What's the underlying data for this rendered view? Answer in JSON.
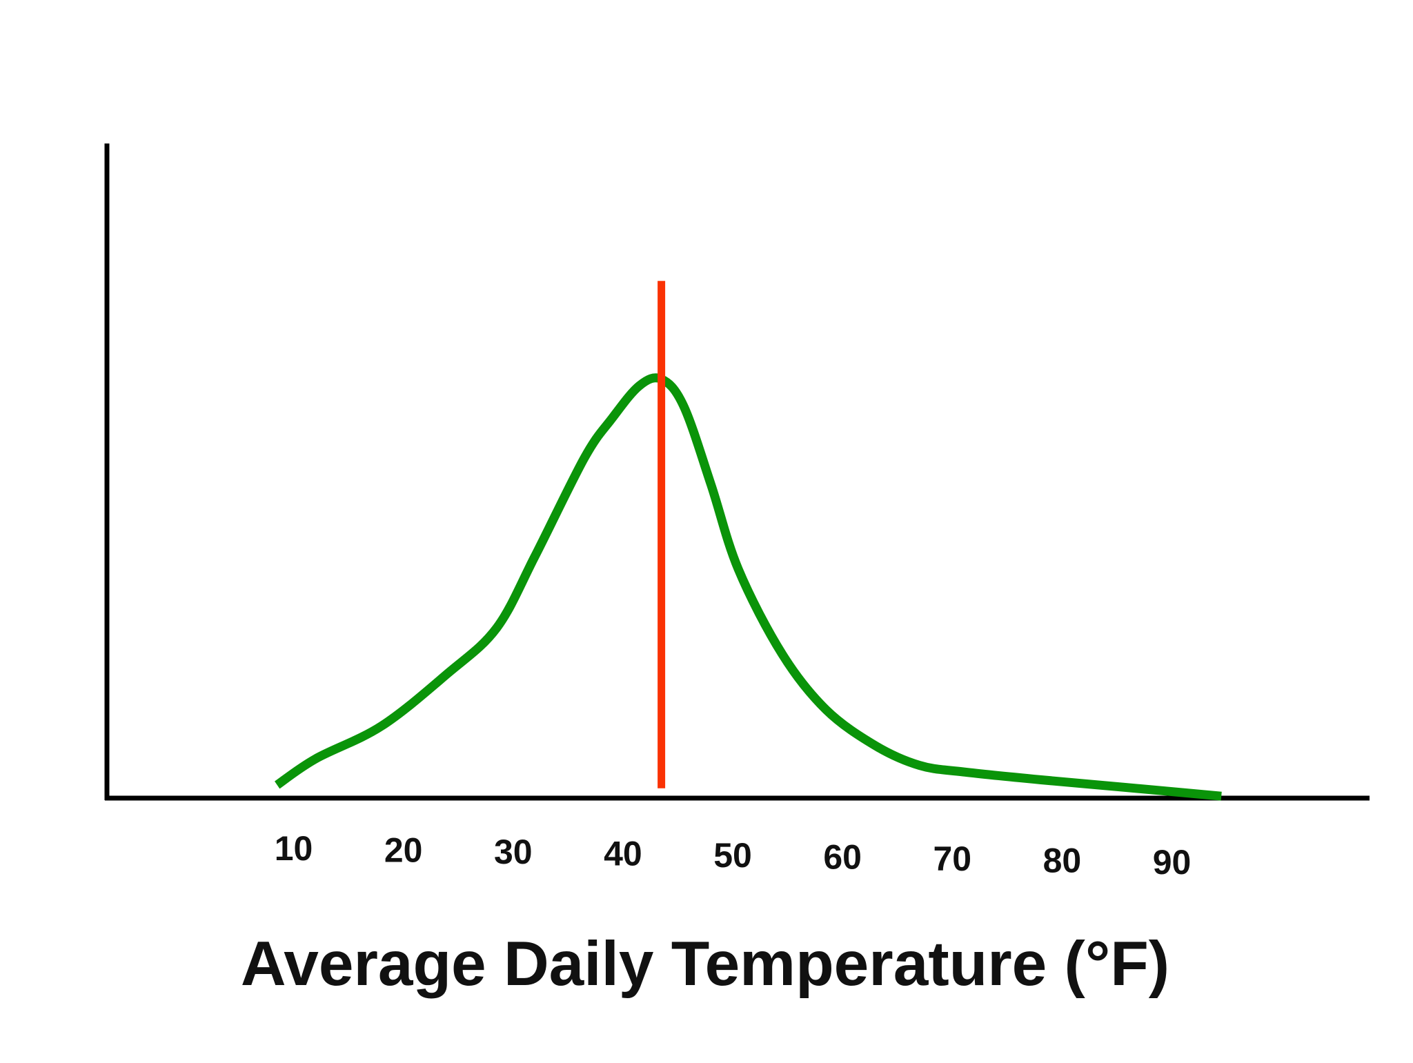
{
  "chart_data": {
    "type": "line",
    "title": "",
    "xlabel": "Average Daily Temperature (°F)",
    "ylabel": "",
    "x_ticks": [
      "10",
      "20",
      "30",
      "40",
      "50",
      "60",
      "70",
      "80",
      "90"
    ],
    "xlim": [
      -7,
      108
    ],
    "ylim": [
      0,
      100
    ],
    "grid": false,
    "legend": "none",
    "series": [
      {
        "color": "#0a9409",
        "x": [
          8.5,
          12,
          18,
          24,
          28.5,
          32,
          36.5,
          39,
          41.5,
          43.5,
          45.5,
          48,
          50.5,
          54.5,
          58.5,
          63,
          67,
          71,
          78,
          86,
          94.5
        ],
        "y": [
          2,
          6,
          11,
          19,
          26,
          37,
          52,
          58,
          63,
          64,
          60,
          48,
          35,
          22,
          13.5,
          8,
          5,
          4,
          2.8,
          1.6,
          0.3
        ]
      }
    ],
    "reference_lines": [
      {
        "orientation": "vertical",
        "x": 43.5,
        "y_range": [
          1.5,
          79
        ],
        "color": "#fa3204"
      }
    ],
    "axis_color": "#000000"
  }
}
